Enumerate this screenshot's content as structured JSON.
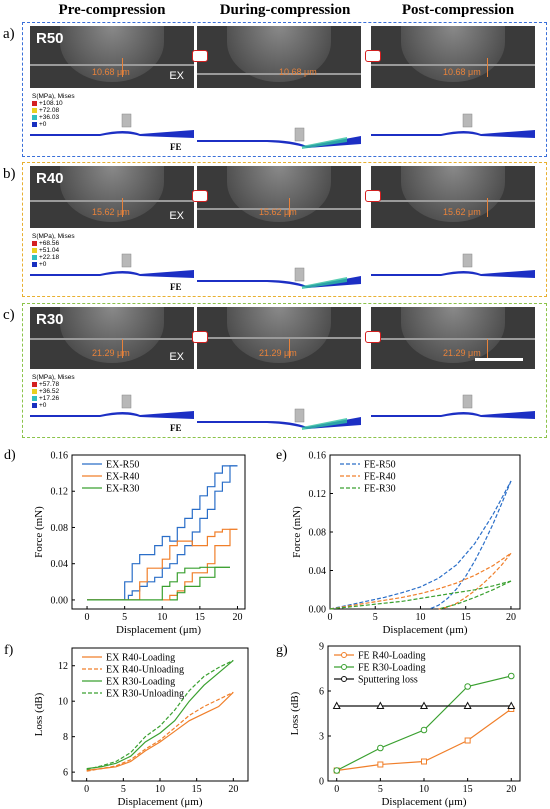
{
  "headers": {
    "pre": "Pre-compression",
    "during": "During-compression",
    "post": "Post-compression"
  },
  "panels": [
    {
      "letter": "a)",
      "radius": "R50",
      "gap": "10.68 μm",
      "ex": "EX",
      "fe": "FE",
      "legend_title": "S(MPa), Mises",
      "legend": [
        "+108.10",
        "+72.08",
        "+36.03",
        "+0"
      ],
      "color": "#3a6fd8"
    },
    {
      "letter": "b)",
      "radius": "R40",
      "gap": "15.62 μm",
      "ex": "EX",
      "fe": "FE",
      "legend_title": "S(MPa), Mises",
      "legend": [
        "+68.56",
        "+51.04",
        "+22.18",
        "+0"
      ],
      "color": "#e8b030"
    },
    {
      "letter": "c)",
      "radius": "R30",
      "gap": "21.29 μm",
      "ex": "EX",
      "fe": "FE",
      "legend_title": "S(MPa), Mises",
      "legend": [
        "+57.78",
        "+36.52",
        "+17.26",
        "+0"
      ],
      "color": "#8bc34a"
    }
  ],
  "legend_colors": [
    "#d42020",
    "#e8d020",
    "#30c0c0",
    "#1830c0"
  ],
  "chart_data": [
    {
      "id": "d",
      "label": "d)",
      "type": "line",
      "xlabel": "Displacement (μm)",
      "ylabel": "Force (mN)",
      "xlim": [
        -2,
        21
      ],
      "ylim": [
        -0.01,
        0.16
      ],
      "xticks": [
        0,
        5,
        10,
        15,
        20
      ],
      "yticks": [
        0.0,
        0.04,
        0.08,
        0.12,
        0.16
      ],
      "ytickfmt": 2,
      "series": [
        {
          "name": "EX-R50",
          "color": "#2a6ec8",
          "dash": false,
          "x": [
            0,
            5,
            5,
            6,
            6,
            7,
            7,
            9,
            9,
            10,
            10,
            11,
            11,
            12,
            12,
            13,
            13,
            14,
            14,
            15,
            15,
            16,
            16,
            17,
            17,
            18,
            18,
            20
          ],
          "y": [
            0,
            0,
            0.02,
            0.02,
            0.04,
            0.04,
            0.05,
            0.05,
            0.06,
            0.06,
            0.07,
            0.07,
            0.065,
            0.065,
            0.08,
            0.08,
            0.09,
            0.09,
            0.1,
            0.1,
            0.115,
            0.115,
            0.125,
            0.125,
            0.14,
            0.14,
            0.148,
            0.148
          ]
        },
        {
          "name": "",
          "color": "#2a6ec8",
          "dash": false,
          "x": [
            20,
            19,
            19,
            18,
            18,
            17,
            17,
            16,
            16,
            15,
            15,
            14,
            14,
            13,
            13,
            12,
            12,
            11,
            11,
            10,
            10,
            9,
            9,
            8,
            8,
            7,
            7,
            6,
            6,
            5.5,
            5.5
          ],
          "y": [
            0.148,
            0.148,
            0.13,
            0.13,
            0.12,
            0.12,
            0.1,
            0.1,
            0.09,
            0.09,
            0.075,
            0.075,
            0.06,
            0.06,
            0.05,
            0.05,
            0.04,
            0.04,
            0.035,
            0.035,
            0.025,
            0.025,
            0.02,
            0.02,
            0.015,
            0.015,
            0.01,
            0.01,
            0.005,
            0.005,
            0
          ]
        },
        {
          "name": "EX-R40",
          "color": "#f07f2a",
          "dash": false,
          "x": [
            0,
            7,
            7,
            8,
            8,
            10,
            10,
            11,
            11,
            12,
            12,
            13,
            13,
            14,
            14,
            16,
            16,
            17,
            17,
            18,
            18,
            20
          ],
          "y": [
            0,
            0,
            0.02,
            0.02,
            0.035,
            0.035,
            0.045,
            0.045,
            0.06,
            0.06,
            0.065,
            0.065,
            0.065,
            0.065,
            0.06,
            0.06,
            0.07,
            0.07,
            0.075,
            0.075,
            0.078,
            0.078
          ]
        },
        {
          "name": "",
          "color": "#f07f2a",
          "dash": false,
          "x": [
            20,
            19,
            19,
            17,
            17,
            16,
            16,
            14,
            14,
            13,
            13,
            12,
            12,
            11,
            11,
            10
          ],
          "y": [
            0.078,
            0.078,
            0.06,
            0.06,
            0.04,
            0.04,
            0.03,
            0.03,
            0.02,
            0.02,
            0.01,
            0.01,
            0.005,
            0.005,
            0,
            0
          ]
        },
        {
          "name": "EX-R30",
          "color": "#3aa030",
          "dash": false,
          "x": [
            0,
            10,
            10,
            11,
            11,
            12,
            12,
            13,
            13,
            15,
            15,
            19
          ],
          "y": [
            0,
            0,
            0.015,
            0.015,
            0.02,
            0.02,
            0.03,
            0.03,
            0.035,
            0.035,
            0.036,
            0.036
          ]
        },
        {
          "name": "",
          "color": "#3aa030",
          "dash": false,
          "x": [
            19,
            17,
            17,
            15,
            15,
            13,
            13,
            12,
            12,
            11
          ],
          "y": [
            0.036,
            0.036,
            0.025,
            0.025,
            0.015,
            0.015,
            0.008,
            0.008,
            0,
            0
          ]
        }
      ]
    },
    {
      "id": "e",
      "label": "e)",
      "type": "line",
      "xlabel": "Displacement (μm)",
      "ylabel": "Force (mN)",
      "xlim": [
        0,
        21
      ],
      "ylim": [
        0,
        0.16
      ],
      "xticks": [
        0,
        5,
        10,
        15,
        20
      ],
      "yticks": [
        0.0,
        0.04,
        0.08,
        0.12,
        0.16
      ],
      "ytickfmt": 2,
      "series": [
        {
          "name": "FE-R50",
          "color": "#2a6ec8",
          "dash": true,
          "x": [
            0,
            2,
            4,
            6,
            8,
            10,
            12,
            14,
            16,
            18,
            20
          ],
          "y": [
            0,
            0.004,
            0.008,
            0.012,
            0.017,
            0.023,
            0.032,
            0.046,
            0.068,
            0.098,
            0.133
          ]
        },
        {
          "name": "",
          "color": "#2a6ec8",
          "dash": true,
          "x": [
            20,
            19,
            18,
            17,
            16,
            15,
            14,
            13,
            12,
            11
          ],
          "y": [
            0.133,
            0.11,
            0.088,
            0.068,
            0.05,
            0.034,
            0.021,
            0.011,
            0.004,
            0
          ]
        },
        {
          "name": "FE-R40",
          "color": "#f07f2a",
          "dash": true,
          "x": [
            0,
            2,
            4,
            6,
            8,
            10,
            12,
            14,
            16,
            18,
            20
          ],
          "y": [
            0,
            0.003,
            0.006,
            0.009,
            0.012,
            0.016,
            0.021,
            0.027,
            0.035,
            0.045,
            0.058
          ]
        },
        {
          "name": "",
          "color": "#f07f2a",
          "dash": true,
          "x": [
            20,
            19,
            18,
            17,
            16,
            15,
            14,
            13,
            12
          ],
          "y": [
            0.058,
            0.046,
            0.036,
            0.027,
            0.019,
            0.012,
            0.006,
            0.002,
            0
          ]
        },
        {
          "name": "FE-R30",
          "color": "#3aa030",
          "dash": true,
          "x": [
            0,
            2,
            4,
            6,
            8,
            10,
            12,
            14,
            16,
            18,
            20
          ],
          "y": [
            0,
            0.002,
            0.004,
            0.006,
            0.008,
            0.011,
            0.014,
            0.017,
            0.02,
            0.024,
            0.029
          ]
        },
        {
          "name": "",
          "color": "#3aa030",
          "dash": true,
          "x": [
            20,
            18,
            16,
            14,
            12
          ],
          "y": [
            0.029,
            0.02,
            0.012,
            0.005,
            0
          ]
        }
      ]
    },
    {
      "id": "f",
      "label": "f)",
      "type": "line",
      "xlabel": "Displacement (μm)",
      "ylabel": "Loss (dB)",
      "xlim": [
        -2,
        22
      ],
      "ylim": [
        5.5,
        13
      ],
      "xticks": [
        0,
        5,
        10,
        15,
        20
      ],
      "yticks": [
        6,
        8,
        10,
        12
      ],
      "ytickfmt": 0,
      "series": [
        {
          "name": "EX R40-Loading",
          "color": "#f07f2a",
          "dash": false,
          "x": [
            0,
            2,
            4,
            6,
            8,
            10,
            12,
            14,
            16,
            18,
            20
          ],
          "y": [
            6.1,
            6.2,
            6.3,
            6.6,
            7.2,
            7.7,
            8.3,
            8.9,
            9.3,
            9.7,
            10.5
          ]
        },
        {
          "name": "EX R40-Unloading",
          "color": "#f07f2a",
          "dash": true,
          "x": [
            0,
            2,
            4,
            6,
            8,
            10,
            12,
            14,
            16,
            18,
            20
          ],
          "y": [
            6.05,
            6.2,
            6.35,
            6.7,
            7.3,
            7.8,
            8.5,
            9.2,
            9.7,
            10.1,
            10.5
          ]
        },
        {
          "name": "EX R30-Loading",
          "color": "#3aa030",
          "dash": false,
          "x": [
            0,
            2,
            4,
            6,
            8,
            10,
            12,
            14,
            16,
            18,
            20
          ],
          "y": [
            6.2,
            6.3,
            6.5,
            6.9,
            7.7,
            8.2,
            8.9,
            10.0,
            10.9,
            11.6,
            12.3
          ]
        },
        {
          "name": "EX R30-Unloading",
          "color": "#3aa030",
          "dash": true,
          "x": [
            0,
            2,
            4,
            6,
            8,
            10,
            12,
            14,
            16,
            18,
            20
          ],
          "y": [
            6.15,
            6.35,
            6.6,
            7.1,
            8.0,
            8.6,
            9.5,
            10.6,
            11.4,
            11.9,
            12.3
          ]
        }
      ]
    },
    {
      "id": "g",
      "label": "g)",
      "type": "line",
      "xlabel": "Displacement (μm)",
      "ylabel": "Loss (dB)",
      "xlim": [
        -1,
        21
      ],
      "ylim": [
        0,
        9
      ],
      "xticks": [
        0,
        5,
        10,
        15,
        20
      ],
      "yticks": [
        0,
        3,
        6,
        9
      ],
      "ytickfmt": 0,
      "series": [
        {
          "name": "FE R40-Loading",
          "color": "#f07f2a",
          "dash": false,
          "marker": "square",
          "x": [
            0,
            5,
            10,
            15,
            20
          ],
          "y": [
            0.7,
            1.1,
            1.3,
            2.7,
            4.8
          ]
        },
        {
          "name": "FE R30-Loading",
          "color": "#3aa030",
          "dash": false,
          "marker": "circle",
          "x": [
            0,
            5,
            10,
            15,
            20
          ],
          "y": [
            0.7,
            2.2,
            3.4,
            6.3,
            7.0
          ]
        },
        {
          "name": "Sputtering loss",
          "color": "#111111",
          "dash": false,
          "marker": "triangle",
          "x": [
            0,
            5,
            10,
            15,
            20
          ],
          "y": [
            5.0,
            5.0,
            5.0,
            5.0,
            5.0
          ]
        }
      ]
    }
  ]
}
